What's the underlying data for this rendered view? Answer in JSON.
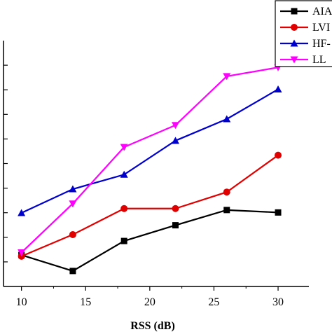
{
  "chart_data": {
    "type": "line",
    "xlabel": "RSS (dB)",
    "ylabel": "",
    "title": "",
    "xlim": [
      8.6,
      32.4
    ],
    "ylim": [
      0,
      1
    ],
    "xticks": [
      10,
      15,
      20,
      25,
      30
    ],
    "x": [
      10,
      14,
      18,
      22,
      26,
      30
    ],
    "grid": false,
    "legend_position": "top-right",
    "series": [
      {
        "name": "AIA",
        "color": "#000000",
        "marker": "square",
        "values": [
          0.128,
          0.063,
          0.185,
          0.249,
          0.311,
          0.301
        ]
      },
      {
        "name": "LVI",
        "color": "#e00000",
        "marker": "circle",
        "values": [
          0.123,
          0.211,
          0.317,
          0.317,
          0.384,
          0.534
        ]
      },
      {
        "name": "HF-",
        "color": "#0000cc",
        "marker": "triangle-up",
        "values": [
          0.299,
          0.396,
          0.455,
          0.593,
          0.681,
          0.802
        ]
      },
      {
        "name": "LL",
        "color": "#ff00ff",
        "marker": "triangle-down",
        "values": [
          0.138,
          0.337,
          0.567,
          0.656,
          0.855,
          0.891
        ]
      }
    ]
  }
}
